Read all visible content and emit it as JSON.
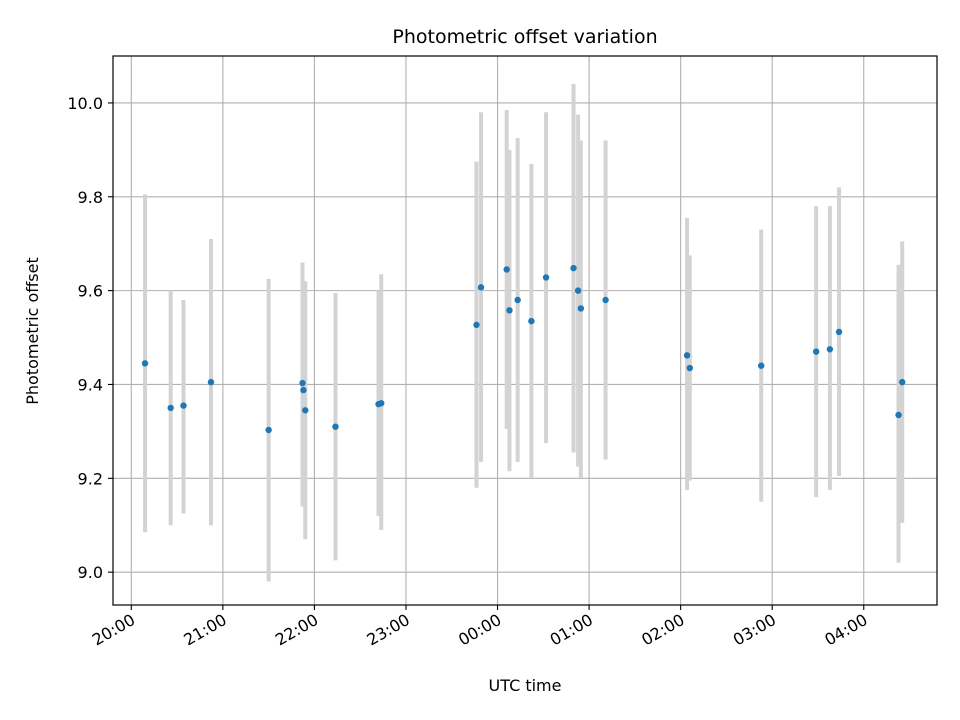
{
  "chart_data": {
    "type": "scatter",
    "title": "Photometric offset variation",
    "xlabel": "UTC time",
    "ylabel": "Photometric offset",
    "x_unit": "hours",
    "xlim": [
      19.8,
      28.8
    ],
    "ylim": [
      8.93,
      10.1
    ],
    "x_ticks": [
      {
        "value": 20,
        "label": "20:00"
      },
      {
        "value": 21,
        "label": "21:00"
      },
      {
        "value": 22,
        "label": "22:00"
      },
      {
        "value": 23,
        "label": "23:00"
      },
      {
        "value": 24,
        "label": "00:00"
      },
      {
        "value": 25,
        "label": "01:00"
      },
      {
        "value": 26,
        "label": "02:00"
      },
      {
        "value": 27,
        "label": "03:00"
      },
      {
        "value": 28,
        "label": "04:00"
      }
    ],
    "y_ticks": [
      {
        "value": 9.0,
        "label": "9.0"
      },
      {
        "value": 9.2,
        "label": "9.2"
      },
      {
        "value": 9.4,
        "label": "9.4"
      },
      {
        "value": 9.6,
        "label": "9.6"
      },
      {
        "value": 9.8,
        "label": "9.8"
      },
      {
        "value": 10.0,
        "label": "10.0"
      }
    ],
    "grid": true,
    "point_color": "#1f77b4",
    "errorbar_color": "#d3d3d3",
    "points": [
      {
        "x": 20.15,
        "y": 9.445,
        "ylow": 9.085,
        "yhigh": 9.805
      },
      {
        "x": 20.43,
        "y": 9.35,
        "ylow": 9.1,
        "yhigh": 9.6
      },
      {
        "x": 20.57,
        "y": 9.355,
        "ylow": 9.125,
        "yhigh": 9.58
      },
      {
        "x": 20.87,
        "y": 9.405,
        "ylow": 9.1,
        "yhigh": 9.71
      },
      {
        "x": 21.5,
        "y": 9.303,
        "ylow": 8.98,
        "yhigh": 9.625
      },
      {
        "x": 21.87,
        "y": 9.403,
        "ylow": 9.14,
        "yhigh": 9.66
      },
      {
        "x": 21.88,
        "y": 9.388,
        "ylow": 9.155,
        "yhigh": 9.62
      },
      {
        "x": 21.9,
        "y": 9.345,
        "ylow": 9.07,
        "yhigh": 9.62
      },
      {
        "x": 22.23,
        "y": 9.31,
        "ylow": 9.025,
        "yhigh": 9.595
      },
      {
        "x": 22.7,
        "y": 9.358,
        "ylow": 9.12,
        "yhigh": 9.6
      },
      {
        "x": 22.73,
        "y": 9.36,
        "ylow": 9.09,
        "yhigh": 9.635
      },
      {
        "x": 23.77,
        "y": 9.527,
        "ylow": 9.18,
        "yhigh": 9.875
      },
      {
        "x": 23.82,
        "y": 9.607,
        "ylow": 9.235,
        "yhigh": 9.98
      },
      {
        "x": 24.1,
        "y": 9.645,
        "ylow": 9.305,
        "yhigh": 9.985
      },
      {
        "x": 24.13,
        "y": 9.558,
        "ylow": 9.215,
        "yhigh": 9.9
      },
      {
        "x": 24.22,
        "y": 9.58,
        "ylow": 9.235,
        "yhigh": 9.925
      },
      {
        "x": 24.37,
        "y": 9.535,
        "ylow": 9.2,
        "yhigh": 9.87
      },
      {
        "x": 24.53,
        "y": 9.628,
        "ylow": 9.275,
        "yhigh": 9.98
      },
      {
        "x": 24.83,
        "y": 9.648,
        "ylow": 9.255,
        "yhigh": 10.04
      },
      {
        "x": 24.88,
        "y": 9.6,
        "ylow": 9.225,
        "yhigh": 9.975
      },
      {
        "x": 24.91,
        "y": 9.562,
        "ylow": 9.2,
        "yhigh": 9.92
      },
      {
        "x": 25.18,
        "y": 9.58,
        "ylow": 9.24,
        "yhigh": 9.92
      },
      {
        "x": 26.07,
        "y": 9.462,
        "ylow": 9.175,
        "yhigh": 9.755
      },
      {
        "x": 26.1,
        "y": 9.435,
        "ylow": 9.195,
        "yhigh": 9.675
      },
      {
        "x": 26.88,
        "y": 9.44,
        "ylow": 9.15,
        "yhigh": 9.73
      },
      {
        "x": 27.48,
        "y": 9.47,
        "ylow": 9.16,
        "yhigh": 9.78
      },
      {
        "x": 27.63,
        "y": 9.475,
        "ylow": 9.175,
        "yhigh": 9.78
      },
      {
        "x": 27.73,
        "y": 9.512,
        "ylow": 9.205,
        "yhigh": 9.82
      },
      {
        "x": 28.38,
        "y": 9.335,
        "ylow": 9.02,
        "yhigh": 9.655
      },
      {
        "x": 28.42,
        "y": 9.405,
        "ylow": 9.105,
        "yhigh": 9.705
      }
    ]
  }
}
